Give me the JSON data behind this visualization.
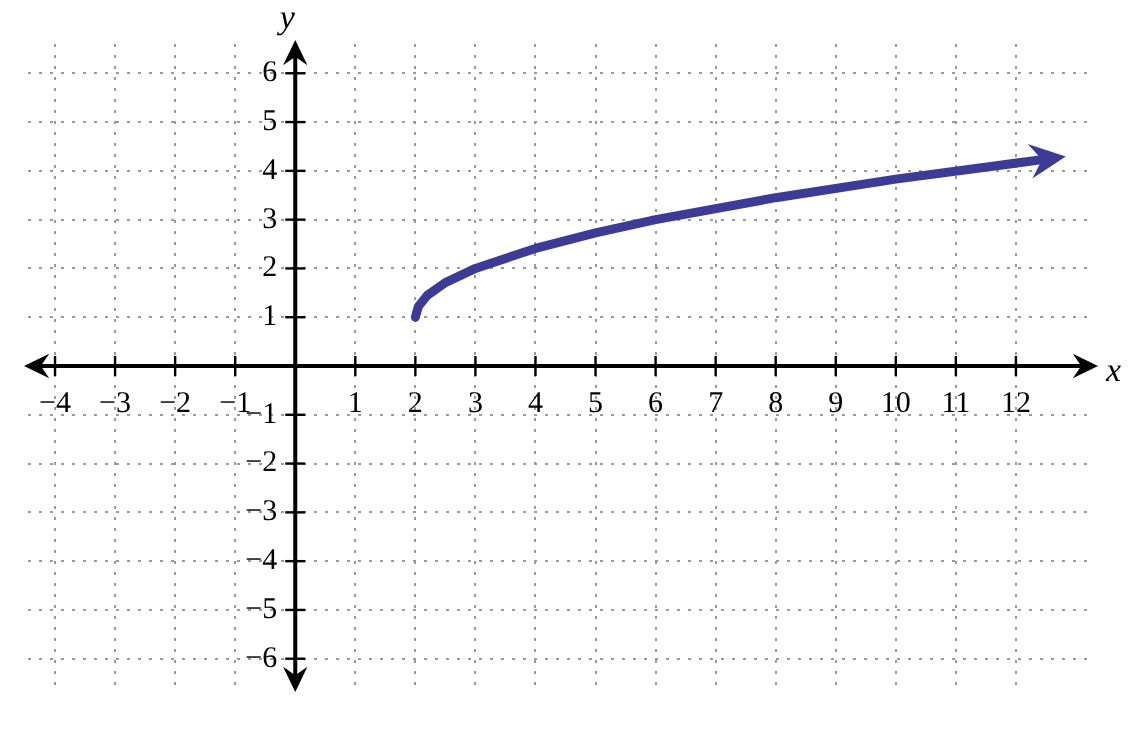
{
  "chart_data": {
    "type": "line",
    "xlabel": "x",
    "ylabel": "y",
    "xlim": [
      -4.45,
      13.3
    ],
    "ylim": [
      -6.6,
      6.6
    ],
    "xticks": [
      {
        "value": -4,
        "label": "−4"
      },
      {
        "value": -3,
        "label": "−3"
      },
      {
        "value": -2,
        "label": "−2"
      },
      {
        "value": -1,
        "label": "−1"
      },
      {
        "value": 0,
        "label": null
      },
      1,
      2,
      3,
      4,
      5,
      6,
      7,
      8,
      9,
      10,
      11,
      12
    ],
    "yticks": [
      {
        "value": -6,
        "label": "−6"
      },
      {
        "value": -5,
        "label": "−5"
      },
      {
        "value": -4,
        "label": "−4"
      },
      {
        "value": -3,
        "label": "−3"
      },
      {
        "value": -2,
        "label": "−2"
      },
      {
        "value": -1,
        "label": "−1"
      },
      {
        "value": 0,
        "label": null
      },
      1,
      2,
      3,
      4,
      5,
      6
    ],
    "grid": true,
    "marker": "none",
    "line_style": "solid",
    "legend": false,
    "series": [
      {
        "color": "#3c3c96",
        "x": [
          2,
          2.05,
          2.2,
          2.5,
          3,
          4,
          5,
          6,
          8,
          10,
          12.5
        ],
        "values": [
          1,
          1.22,
          1.45,
          1.71,
          2,
          2.41,
          2.73,
          3,
          3.45,
          3.83,
          4.24
        ]
      }
    ]
  }
}
